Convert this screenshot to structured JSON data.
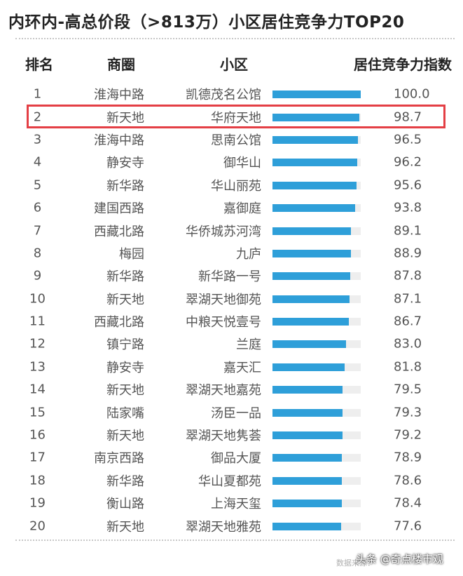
{
  "title": "内环内-高总价段（>813万）小区居住竞争力TOP20",
  "headers": {
    "rank": "排名",
    "district": "商圈",
    "community": "小区",
    "score": "居住竞争力指数"
  },
  "highlight_color": "#e43f45",
  "bar_color": "#2e9fd9",
  "track_color": "#eeeeee",
  "chart_data": {
    "type": "bar",
    "title": "内环内-高总价段（>813万）小区居住竞争力TOP20",
    "orientation": "horizontal",
    "value_label": "居住竞争力指数",
    "xlim": [
      0,
      100
    ],
    "highlighted_rank": 2,
    "rows": [
      {
        "rank": "1",
        "district": "淮海中路",
        "community": "凯德茂名公馆",
        "value": 100.0,
        "label": "100.0"
      },
      {
        "rank": "2",
        "district": "新天地",
        "community": "华府天地",
        "value": 98.7,
        "label": "98.7"
      },
      {
        "rank": "3",
        "district": "淮海中路",
        "community": "思南公馆",
        "value": 96.5,
        "label": "96.5"
      },
      {
        "rank": "4",
        "district": "静安寺",
        "community": "御华山",
        "value": 96.2,
        "label": "96.2"
      },
      {
        "rank": "5",
        "district": "新华路",
        "community": "华山丽苑",
        "value": 95.6,
        "label": "95.6"
      },
      {
        "rank": "6",
        "district": "建国西路",
        "community": "嘉御庭",
        "value": 93.8,
        "label": "93.8"
      },
      {
        "rank": "7",
        "district": "西藏北路",
        "community": "华侨城苏河湾",
        "value": 89.1,
        "label": "89.1"
      },
      {
        "rank": "8",
        "district": "梅园",
        "community": "九庐",
        "value": 88.9,
        "label": "88.9"
      },
      {
        "rank": "9",
        "district": "新华路",
        "community": "新华路一号",
        "value": 87.8,
        "label": "87.8"
      },
      {
        "rank": "10",
        "district": "新天地",
        "community": "翠湖天地御苑",
        "value": 87.1,
        "label": "87.1"
      },
      {
        "rank": "11",
        "district": "西藏北路",
        "community": "中粮天悦壹号",
        "value": 86.7,
        "label": "86.7"
      },
      {
        "rank": "12",
        "district": "镇宁路",
        "community": "兰庭",
        "value": 83.0,
        "label": "83.0"
      },
      {
        "rank": "13",
        "district": "静安寺",
        "community": "嘉天汇",
        "value": 81.8,
        "label": "81.8"
      },
      {
        "rank": "14",
        "district": "新天地",
        "community": "翠湖天地嘉苑",
        "value": 79.5,
        "label": "79.5"
      },
      {
        "rank": "15",
        "district": "陆家嘴",
        "community": "汤臣一品",
        "value": 79.3,
        "label": "79.3"
      },
      {
        "rank": "16",
        "district": "新天地",
        "community": "翠湖天地隽荟",
        "value": 79.2,
        "label": "79.2"
      },
      {
        "rank": "17",
        "district": "南京西路",
        "community": "御品大厦",
        "value": 78.9,
        "label": "78.9"
      },
      {
        "rank": "18",
        "district": "新华路",
        "community": "华山夏都苑",
        "value": 78.6,
        "label": "78.6"
      },
      {
        "rank": "19",
        "district": "衡山路",
        "community": "上海天玺",
        "value": 78.4,
        "label": "78.4"
      },
      {
        "rank": "20",
        "district": "新天地",
        "community": "翠湖天地雅苑",
        "value": 77.6,
        "label": "77.6"
      }
    ]
  },
  "footer": {
    "source": "数据来源：",
    "watermark": "头条 @奇点楼市观"
  }
}
